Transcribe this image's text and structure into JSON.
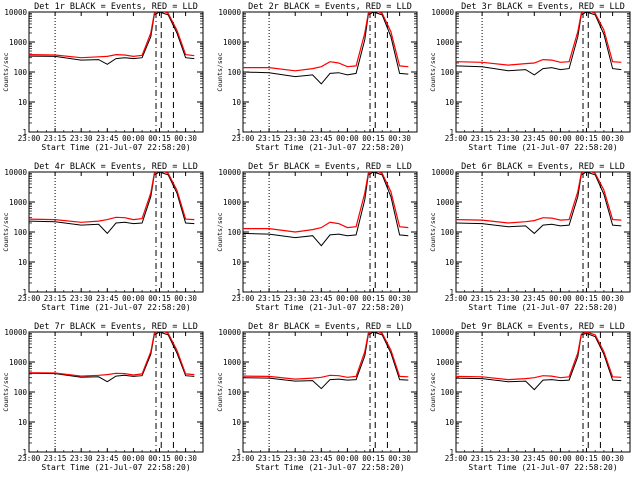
{
  "figure": {
    "x_tick_labels": [
      "23:00",
      "23:15",
      "23:30",
      "23:45",
      "00:00",
      "00:15",
      "00:30"
    ],
    "y_tick_labels": [
      "1",
      "10",
      "100",
      "1000",
      "10000"
    ],
    "ylabel": "Counts/sec",
    "xlabel": "Start Time (21-Jul-07 22:58:20)",
    "colors": {
      "events": "#000000",
      "lld": "#ff0000",
      "axes": "#000000",
      "background": "#ffffff"
    }
  },
  "chart_data": [
    {
      "type": "line",
      "title": "Det 1r BLACK = Events, RED = LLD",
      "xlabel": "Start Time (21-Jul-07 22:58:20)",
      "ylabel": "Counts/sec",
      "xlim": [
        "23:00",
        "00:40"
      ],
      "ylim": [
        1,
        10000
      ],
      "yscale": "log",
      "grid": false,
      "legend": "title",
      "x": [
        "23:00",
        "23:15",
        "23:30",
        "23:40",
        "23:45",
        "23:50",
        "23:55",
        "00:00",
        "00:05",
        "00:10",
        "00:12",
        "00:15",
        "00:20",
        "00:25",
        "00:30",
        "00:35"
      ],
      "series": [
        {
          "name": "Events",
          "color": "#000000",
          "values": [
            340,
            330,
            250,
            260,
            180,
            280,
            300,
            280,
            300,
            1500,
            8000,
            10000,
            8000,
            2000,
            300,
            280
          ]
        },
        {
          "name": "LLD",
          "color": "#ff0000",
          "values": [
            380,
            370,
            300,
            320,
            330,
            380,
            370,
            330,
            360,
            2000,
            9000,
            12000,
            9000,
            2500,
            380,
            350
          ]
        }
      ]
    },
    {
      "type": "line",
      "title": "Det 2r BLACK = Events, RED = LLD",
      "xlabel": "Start Time (21-Jul-07 22:58:20)",
      "ylabel": "Counts/sec",
      "xlim": [
        "23:00",
        "00:40"
      ],
      "ylim": [
        1,
        10000
      ],
      "yscale": "log",
      "grid": false,
      "legend": "title",
      "x": [
        "23:00",
        "23:15",
        "23:30",
        "23:40",
        "23:45",
        "23:50",
        "23:55",
        "00:00",
        "00:05",
        "00:10",
        "00:12",
        "00:15",
        "00:20",
        "00:25",
        "00:30",
        "00:35"
      ],
      "series": [
        {
          "name": "Events",
          "color": "#000000",
          "values": [
            100,
            95,
            70,
            80,
            40,
            90,
            95,
            80,
            90,
            1200,
            8000,
            10000,
            8000,
            1500,
            90,
            85
          ]
        },
        {
          "name": "LLD",
          "color": "#ff0000",
          "values": [
            140,
            140,
            110,
            130,
            150,
            220,
            200,
            150,
            160,
            2000,
            9000,
            12000,
            9000,
            2200,
            160,
            150
          ]
        }
      ]
    },
    {
      "type": "line",
      "title": "Det 3r BLACK = Events, RED = LLD",
      "xlabel": "Start Time (21-Jul-07 22:58:20)",
      "ylabel": "Counts/sec",
      "xlim": [
        "23:00",
        "00:40"
      ],
      "ylim": [
        1,
        10000
      ],
      "yscale": "log",
      "grid": false,
      "legend": "title",
      "x": [
        "23:00",
        "23:15",
        "23:30",
        "23:40",
        "23:45",
        "23:50",
        "23:55",
        "00:00",
        "00:05",
        "00:10",
        "00:12",
        "00:15",
        "00:20",
        "00:25",
        "00:30",
        "00:35"
      ],
      "series": [
        {
          "name": "Events",
          "color": "#000000",
          "values": [
            160,
            150,
            110,
            120,
            80,
            130,
            140,
            120,
            130,
            1500,
            8000,
            10000,
            8000,
            1800,
            130,
            120
          ]
        },
        {
          "name": "LLD",
          "color": "#ff0000",
          "values": [
            220,
            210,
            170,
            190,
            200,
            260,
            250,
            210,
            220,
            2200,
            9000,
            12000,
            9000,
            2500,
            220,
            210
          ]
        }
      ]
    },
    {
      "type": "line",
      "title": "Det 4r BLACK = Events, RED = LLD",
      "xlabel": "Start Time (21-Jul-07 22:58:20)",
      "ylabel": "Counts/sec",
      "xlim": [
        "23:00",
        "00:40"
      ],
      "ylim": [
        1,
        10000
      ],
      "yscale": "log",
      "grid": false,
      "legend": "title",
      "x": [
        "23:00",
        "23:15",
        "23:30",
        "23:40",
        "23:45",
        "23:50",
        "23:55",
        "00:00",
        "00:05",
        "00:10",
        "00:12",
        "00:15",
        "00:20",
        "00:25",
        "00:30",
        "00:35"
      ],
      "series": [
        {
          "name": "Events",
          "color": "#000000",
          "values": [
            230,
            220,
            170,
            180,
            90,
            200,
            210,
            190,
            200,
            1500,
            8000,
            10000,
            8000,
            2000,
            200,
            190
          ]
        },
        {
          "name": "LLD",
          "color": "#ff0000",
          "values": [
            270,
            260,
            210,
            230,
            260,
            310,
            300,
            260,
            280,
            2000,
            9000,
            12000,
            9000,
            2500,
            270,
            260
          ]
        }
      ]
    },
    {
      "type": "line",
      "title": "Det 5r BLACK = Events, RED = LLD",
      "xlabel": "Start Time (21-Jul-07 22:58:20)",
      "ylabel": "Counts/sec",
      "xlim": [
        "23:00",
        "00:40"
      ],
      "ylim": [
        1,
        10000
      ],
      "yscale": "log",
      "grid": false,
      "legend": "title",
      "x": [
        "23:00",
        "23:15",
        "23:30",
        "23:40",
        "23:45",
        "23:50",
        "23:55",
        "00:00",
        "00:05",
        "00:10",
        "00:12",
        "00:15",
        "00:20",
        "00:25",
        "00:30",
        "00:35"
      ],
      "series": [
        {
          "name": "Events",
          "color": "#000000",
          "values": [
            90,
            85,
            65,
            75,
            35,
            80,
            85,
            75,
            80,
            1200,
            8000,
            10000,
            8000,
            1500,
            80,
            75
          ]
        },
        {
          "name": "LLD",
          "color": "#ff0000",
          "values": [
            130,
            130,
            100,
            120,
            140,
            210,
            190,
            140,
            150,
            2000,
            9000,
            12000,
            9000,
            2200,
            150,
            140
          ]
        }
      ]
    },
    {
      "type": "line",
      "title": "Det 6r BLACK = Events, RED = LLD",
      "xlabel": "Start Time (21-Jul-07 22:58:20)",
      "ylabel": "Counts/sec",
      "xlim": [
        "23:00",
        "00:40"
      ],
      "ylim": [
        1,
        10000
      ],
      "yscale": "log",
      "grid": false,
      "legend": "title",
      "x": [
        "23:00",
        "23:15",
        "23:30",
        "23:40",
        "23:45",
        "23:50",
        "23:55",
        "00:00",
        "00:05",
        "00:10",
        "00:12",
        "00:15",
        "00:20",
        "00:25",
        "00:30",
        "00:35"
      ],
      "series": [
        {
          "name": "Events",
          "color": "#000000",
          "values": [
            200,
            190,
            150,
            160,
            90,
            170,
            180,
            160,
            170,
            1500,
            8000,
            10000,
            8000,
            1800,
            170,
            160
          ]
        },
        {
          "name": "LLD",
          "color": "#ff0000",
          "values": [
            260,
            250,
            200,
            220,
            240,
            300,
            290,
            250,
            260,
            2200,
            9000,
            12000,
            9000,
            2500,
            260,
            250
          ]
        }
      ]
    },
    {
      "type": "line",
      "title": "Det 7r BLACK = Events, RED = LLD",
      "xlabel": "Start Time (21-Jul-07 22:58:20)",
      "ylabel": "Counts/sec",
      "xlim": [
        "23:00",
        "00:40"
      ],
      "ylim": [
        1,
        10000
      ],
      "yscale": "log",
      "grid": false,
      "legend": "title",
      "x": [
        "23:00",
        "23:15",
        "23:30",
        "23:40",
        "23:45",
        "23:50",
        "23:55",
        "00:00",
        "00:05",
        "00:10",
        "00:12",
        "00:15",
        "00:20",
        "00:25",
        "00:30",
        "00:35"
      ],
      "series": [
        {
          "name": "Events",
          "color": "#000000",
          "values": [
            420,
            410,
            310,
            320,
            220,
            340,
            360,
            330,
            350,
            1800,
            8000,
            10000,
            8000,
            2000,
            350,
            330
          ]
        },
        {
          "name": "LLD",
          "color": "#ff0000",
          "values": [
            440,
            430,
            340,
            360,
            380,
            420,
            410,
            370,
            400,
            2200,
            9000,
            12000,
            9000,
            2500,
            400,
            380
          ]
        }
      ]
    },
    {
      "type": "line",
      "title": "Det 8r BLACK = Events, RED = LLD",
      "xlabel": "Start Time (21-Jul-07 22:58:20)",
      "ylabel": "Counts/sec",
      "xlim": [
        "23:00",
        "00:40"
      ],
      "ylim": [
        1,
        10000
      ],
      "yscale": "log",
      "grid": false,
      "legend": "title",
      "x": [
        "23:00",
        "23:15",
        "23:30",
        "23:40",
        "23:45",
        "23:50",
        "23:55",
        "00:00",
        "00:05",
        "00:10",
        "00:12",
        "00:15",
        "00:20",
        "00:25",
        "00:30",
        "00:35"
      ],
      "series": [
        {
          "name": "Events",
          "color": "#000000",
          "values": [
            300,
            290,
            230,
            240,
            130,
            260,
            270,
            250,
            260,
            1600,
            8000,
            10000,
            8000,
            2000,
            260,
            250
          ]
        },
        {
          "name": "LLD",
          "color": "#ff0000",
          "values": [
            340,
            330,
            270,
            290,
            310,
            360,
            350,
            310,
            330,
            2200,
            9000,
            12000,
            9000,
            2500,
            330,
            320
          ]
        }
      ]
    },
    {
      "type": "line",
      "title": "Det 9r BLACK = Events, RED = LLD",
      "xlabel": "Start Time (21-Jul-07 22:58:20)",
      "ylabel": "Counts/sec",
      "xlim": [
        "23:00",
        "00:40"
      ],
      "ylim": [
        1,
        10000
      ],
      "yscale": "log",
      "grid": false,
      "legend": "title",
      "x": [
        "23:00",
        "23:15",
        "23:30",
        "23:40",
        "23:45",
        "23:50",
        "23:55",
        "00:00",
        "00:05",
        "00:10",
        "00:12",
        "00:15",
        "00:20",
        "00:25",
        "00:30",
        "00:35"
      ],
      "series": [
        {
          "name": "Events",
          "color": "#000000",
          "values": [
            290,
            280,
            220,
            230,
            120,
            250,
            260,
            240,
            250,
            1500,
            8000,
            9000,
            7000,
            1800,
            250,
            240
          ]
        },
        {
          "name": "LLD",
          "color": "#ff0000",
          "values": [
            330,
            320,
            260,
            280,
            300,
            350,
            340,
            300,
            320,
            2000,
            8500,
            10000,
            8000,
            2200,
            320,
            310
          ]
        }
      ]
    }
  ]
}
